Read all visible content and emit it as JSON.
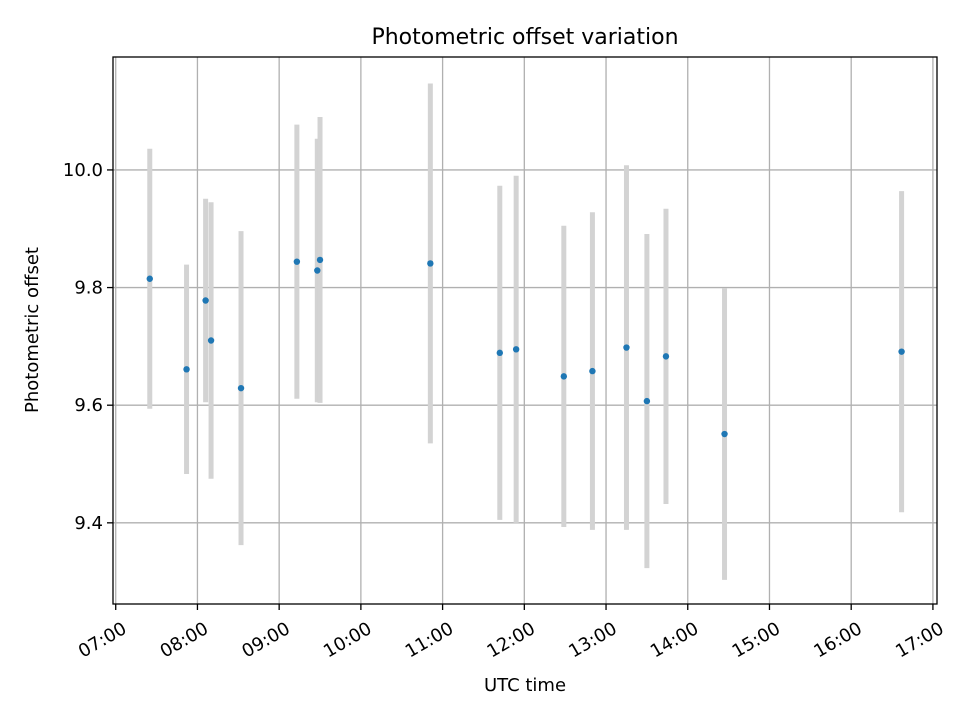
{
  "chart_data": {
    "type": "scatter",
    "title": "Photometric offset variation",
    "xlabel": "UTC time",
    "ylabel": "Photometric offset",
    "x_unit": "time of day (UTC)",
    "xlim": [
      "06:58",
      "17:03"
    ],
    "ylim": [
      9.262,
      10.192
    ],
    "x_ticks": [
      "07:00",
      "08:00",
      "09:00",
      "10:00",
      "11:00",
      "12:00",
      "13:00",
      "14:00",
      "15:00",
      "16:00",
      "17:00"
    ],
    "y_ticks": [
      9.4,
      9.6,
      9.8,
      10.0
    ],
    "y_tick_labels": [
      "9.4",
      "9.6",
      "9.8",
      "10.0"
    ],
    "grid": true,
    "marker_color": "#1f77b4",
    "errorbar_color": "#d3d3d3",
    "points": [
      {
        "x": "07:25",
        "y": 9.815,
        "yerr": 0.221
      },
      {
        "x": "07:52",
        "y": 9.661,
        "yerr": 0.178
      },
      {
        "x": "08:06",
        "y": 9.778,
        "yerr": 0.173
      },
      {
        "x": "08:10",
        "y": 9.71,
        "yerr": 0.235
      },
      {
        "x": "08:32",
        "y": 9.629,
        "yerr": 0.267
      },
      {
        "x": "09:13",
        "y": 9.844,
        "yerr": 0.233
      },
      {
        "x": "09:28",
        "y": 9.829,
        "yerr": 0.224
      },
      {
        "x": "09:30",
        "y": 9.847,
        "yerr": 0.243
      },
      {
        "x": "10:51",
        "y": 9.841,
        "yerr": 0.306
      },
      {
        "x": "11:42",
        "y": 9.689,
        "yerr": 0.284
      },
      {
        "x": "11:54",
        "y": 9.695,
        "yerr": 0.295
      },
      {
        "x": "12:29",
        "y": 9.649,
        "yerr": 0.256
      },
      {
        "x": "12:50",
        "y": 9.658,
        "yerr": 0.27
      },
      {
        "x": "13:15",
        "y": 9.698,
        "yerr": 0.31
      },
      {
        "x": "13:30",
        "y": 9.607,
        "yerr": 0.284
      },
      {
        "x": "13:44",
        "y": 9.683,
        "yerr": 0.251
      },
      {
        "x": "14:27",
        "y": 9.551,
        "yerr": 0.248
      },
      {
        "x": "16:37",
        "y": 9.691,
        "yerr": 0.273
      }
    ]
  }
}
